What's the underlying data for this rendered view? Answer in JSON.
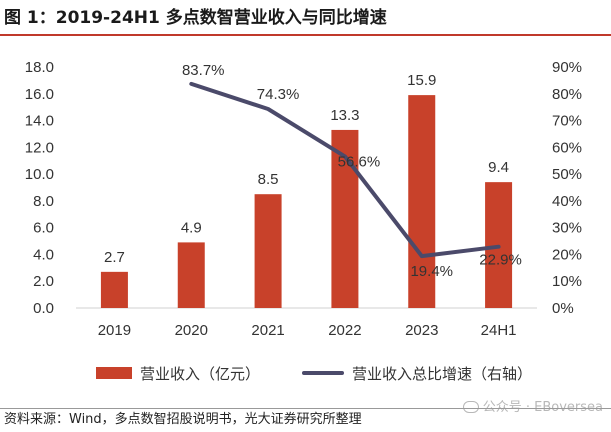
{
  "title": "图 1：2019-24H1 多点数智营业收入与同比增速",
  "chart_data": {
    "type": "bar",
    "categories": [
      "2019",
      "2020",
      "2021",
      "2022",
      "2023",
      "24H1"
    ],
    "series": [
      {
        "name": "营业收入（亿元）",
        "type": "bar",
        "axis": "left",
        "values": [
          2.7,
          4.9,
          8.5,
          13.3,
          15.9,
          9.4
        ],
        "labels": [
          "2.7",
          "4.9",
          "8.5",
          "13.3",
          "15.9",
          "9.4"
        ]
      },
      {
        "name": "营业收入总比增速（右轴）",
        "type": "line",
        "axis": "right",
        "values": [
          null,
          83.7,
          74.3,
          56.6,
          19.4,
          22.9
        ],
        "labels": [
          "",
          "83.7%",
          "74.3%",
          "56.6%",
          "19.4%",
          "22.9%"
        ]
      }
    ],
    "y_left": {
      "min": 0,
      "max": 18,
      "step": 2,
      "ticks": [
        "0.0",
        "2.0",
        "4.0",
        "6.0",
        "8.0",
        "10.0",
        "12.0",
        "14.0",
        "16.0",
        "18.0"
      ]
    },
    "y_right": {
      "min": 0,
      "max": 90,
      "step": 10,
      "ticks": [
        "0%",
        "10%",
        "20%",
        "30%",
        "40%",
        "50%",
        "60%",
        "70%",
        "80%",
        "90%"
      ]
    },
    "grid": false
  },
  "legend": {
    "bar_label": "营业收入（亿元）",
    "line_label": "营业收入总比增速（右轴）"
  },
  "colors": {
    "bar": "#c8412a",
    "line": "#4b4a6a",
    "axis": "#d0d0d0",
    "tick_text": "#333333",
    "label_text": "#333333",
    "title_rule": "#c0392b"
  },
  "source": "资料来源：Wind，多点数智招股说明书，光大证券研究所整理",
  "watermark": "公众号 · EBoversea"
}
